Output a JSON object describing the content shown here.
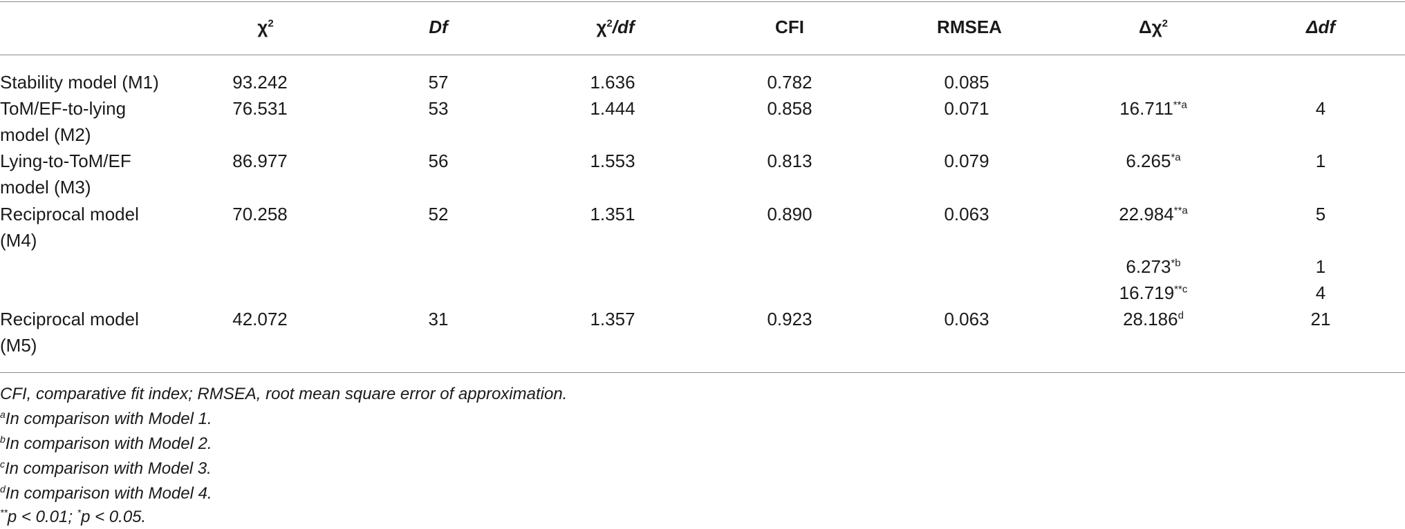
{
  "headers": {
    "chi2": "χ",
    "chi2_sup": "2",
    "df": "Df",
    "chi2df_pre": "χ",
    "chi2df_sup": "2",
    "chi2df_post": "/df",
    "cfi": "CFI",
    "rmsea": "RMSEA",
    "dchi2_pre": "Δχ",
    "dchi2_sup": "2",
    "ddf_pre": "Δ",
    "ddf_post": "df"
  },
  "rows": [
    {
      "label": "Stability model (M1)",
      "chi2": "93.242",
      "df": "57",
      "chi2df": "1.636",
      "cfi": "0.782",
      "rmsea": "0.085",
      "dchi2": "",
      "dchi2_sup": "",
      "ddf": ""
    },
    {
      "label": "ToM/EF-to-lying model (M2)",
      "chi2": "76.531",
      "df": "53",
      "chi2df": "1.444",
      "cfi": "0.858",
      "rmsea": "0.071",
      "dchi2": "16.711",
      "dchi2_sup": "**a",
      "ddf": "4"
    },
    {
      "label": "Lying-to-ToM/EF model (M3)",
      "chi2": "86.977",
      "df": "56",
      "chi2df": "1.553",
      "cfi": "0.813",
      "rmsea": "0.079",
      "dchi2": "6.265",
      "dchi2_sup": "*a",
      "ddf": "1"
    },
    {
      "label": "Reciprocal model (M4)",
      "chi2": "70.258",
      "df": "52",
      "chi2df": "1.351",
      "cfi": "0.890",
      "rmsea": "0.063",
      "dchi2": "22.984",
      "dchi2_sup": "**a",
      "ddf": "5"
    },
    {
      "label": "",
      "chi2": "",
      "df": "",
      "chi2df": "",
      "cfi": "",
      "rmsea": "",
      "dchi2": "6.273",
      "dchi2_sup": "*b",
      "ddf": "1"
    },
    {
      "label": "",
      "chi2": "",
      "df": "",
      "chi2df": "",
      "cfi": "",
      "rmsea": "",
      "dchi2": "16.719",
      "dchi2_sup": "**c",
      "ddf": "4"
    },
    {
      "label": "Reciprocal model (M5)",
      "chi2": "42.072",
      "df": "31",
      "chi2df": "1.357",
      "cfi": "0.923",
      "rmsea": "0.063",
      "dchi2": "28.186",
      "dchi2_sup": "d",
      "ddf": "21"
    }
  ],
  "notes": {
    "abbrev": "CFI, comparative fit index; RMSEA, root mean square error of approximation.",
    "a_sup": "a",
    "a_text": "In comparison with Model 1.",
    "b_sup": "b",
    "b_text": "In comparison with Model 2.",
    "c_sup": "c",
    "c_text": "In comparison with Model 3.",
    "d_sup": "d",
    "d_text": "In comparison with Model 4.",
    "sig_sup1": "**",
    "sig_text1": "p < 0.01; ",
    "sig_sup2": "*",
    "sig_text2": "p < 0.05."
  }
}
